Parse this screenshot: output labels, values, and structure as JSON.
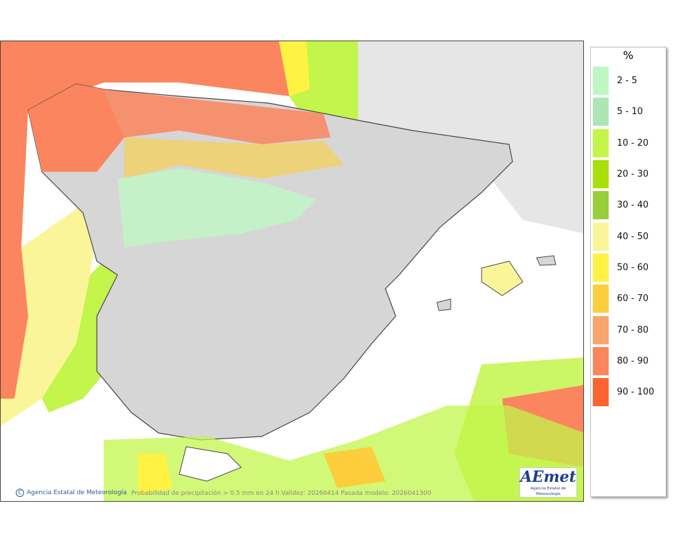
{
  "map": {
    "credit": "Agencia Estatal de Meteorología",
    "caption": "Probabilidad de precipitación > 0.5 mm en 24 h Validez: 20260414 Pasada modelo: 2026041300",
    "logo_brand": "AEmet",
    "logo_subtitle": "Agencia Estatal de Meteorología",
    "land_color": "#d6d6d6",
    "sea_color": "#ffffff"
  },
  "legend": {
    "unit": "%",
    "items": [
      {
        "label": "2 - 5",
        "color": "#bff7c3"
      },
      {
        "label": "5 - 10",
        "color": "#ade6b4"
      },
      {
        "label": "10 - 20",
        "color": "#c3f54a"
      },
      {
        "label": "20 - 30",
        "color": "#a8e00c"
      },
      {
        "label": "30 - 40",
        "color": "#98cf3a"
      },
      {
        "label": "40 - 50",
        "color": "#fbf59a"
      },
      {
        "label": "50 - 60",
        "color": "#fef243"
      },
      {
        "label": "60 - 70",
        "color": "#fcce3c"
      },
      {
        "label": "70 - 80",
        "color": "#f9a56d"
      },
      {
        "label": "80 - 90",
        "color": "#fb855e"
      },
      {
        "label": "90 - 100",
        "color": "#fd6331"
      }
    ]
  }
}
